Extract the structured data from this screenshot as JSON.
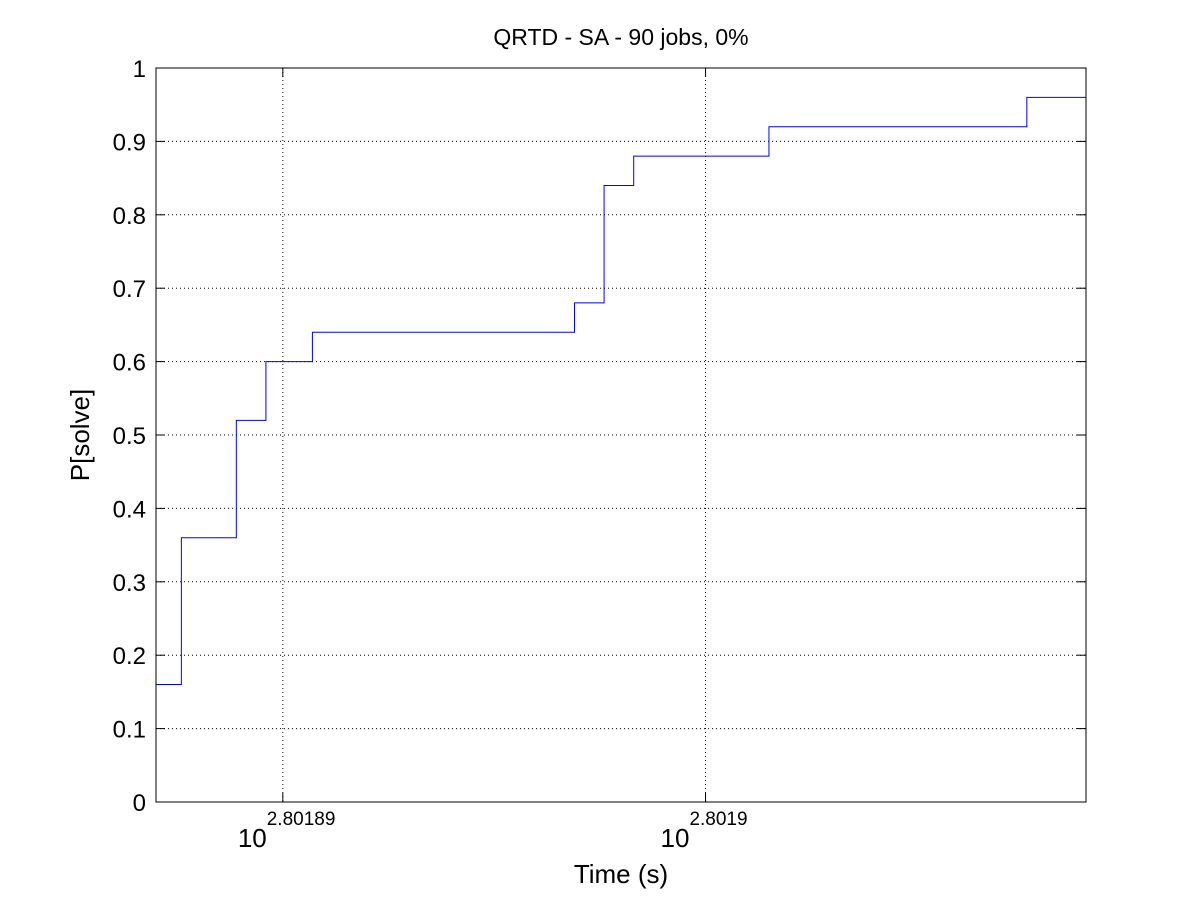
{
  "chart_data": {
    "type": "line",
    "title": "QRTD - SA - 90 jobs, 0%",
    "xlabel": "Time (s)",
    "ylabel": "P[solve]",
    "x_scale": "log",
    "xlim": [
      2.801887,
      2.801909
    ],
    "ylim": [
      0,
      1
    ],
    "grid": true,
    "step": true,
    "x_ticks": [
      {
        "base": "10",
        "exponent": "2.80189",
        "value": 2.80189
      },
      {
        "base": "10",
        "exponent": "2.8019",
        "value": 2.8019
      }
    ],
    "y_ticks": [
      "0",
      "0.1",
      "0.2",
      "0.3",
      "0.4",
      "0.5",
      "0.6",
      "0.7",
      "0.8",
      "0.9",
      "1"
    ],
    "series": [
      {
        "color": "#0000ff",
        "points": [
          [
            2.801887,
            0.16
          ],
          [
            2.8018876,
            0.36
          ],
          [
            2.8018889,
            0.52
          ],
          [
            2.8018896,
            0.6
          ],
          [
            2.8018907,
            0.64
          ],
          [
            2.8018969,
            0.68
          ],
          [
            2.8018976,
            0.84
          ],
          [
            2.8018983,
            0.88
          ],
          [
            2.8019015,
            0.92
          ],
          [
            2.8019076,
            0.96
          ],
          [
            2.801909,
            0.96
          ]
        ]
      }
    ]
  }
}
